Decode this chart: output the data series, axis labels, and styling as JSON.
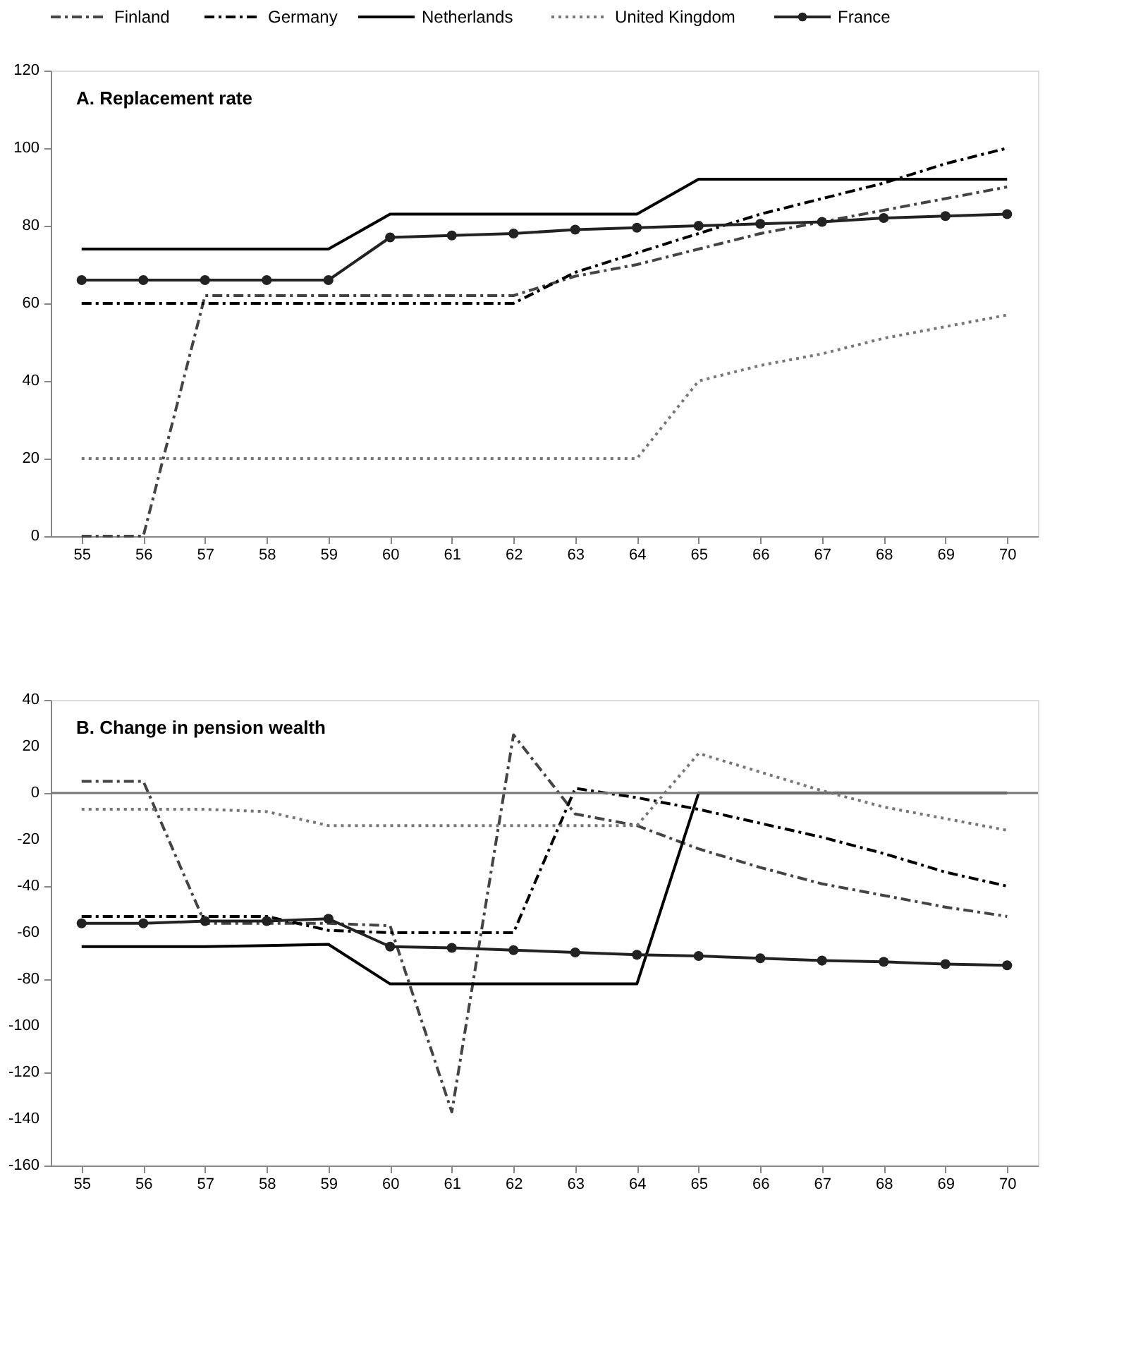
{
  "chart_data": [
    {
      "type": "line",
      "categories": [
        "55",
        "56",
        "57",
        "58",
        "59",
        "60",
        "61",
        "62",
        "63",
        "64",
        "65",
        "66",
        "67",
        "68",
        "69",
        "70"
      ],
      "ylim": [
        0,
        120
      ],
      "yticks": [
        0,
        20,
        40,
        60,
        80,
        100,
        120
      ],
      "grid": false,
      "legend": "top",
      "annotations": [
        "A. Replacement rate"
      ],
      "series": [
        {
          "name": "Finland",
          "color": "#444444",
          "line_style": "dashed",
          "marker": "none",
          "values": [
            0,
            0,
            62,
            62,
            62,
            62,
            62,
            62,
            67,
            70,
            74,
            78,
            81,
            84,
            87,
            90
          ]
        },
        {
          "name": "Germany",
          "color": "#000000",
          "line_style": "dashed",
          "marker": "none",
          "values": [
            60,
            60,
            60,
            60,
            60,
            60,
            60,
            60,
            68,
            73,
            78,
            83,
            87,
            91,
            96,
            100
          ]
        },
        {
          "name": "Netherlands",
          "color": "#000000",
          "line_style": "solid",
          "marker": "none",
          "values": [
            74,
            74,
            74,
            74,
            74,
            83,
            83,
            83,
            83,
            83,
            92,
            92,
            92,
            92,
            92,
            92
          ]
        },
        {
          "name": "United Kingdom",
          "color": "#777777",
          "line_style": "dotted",
          "marker": "none",
          "values": [
            20,
            20,
            20,
            20,
            20,
            20,
            20,
            20,
            20,
            20,
            40,
            44,
            47,
            51,
            54,
            57
          ]
        },
        {
          "name": "France",
          "color": "#222222",
          "line_style": "solid",
          "marker": "circle",
          "values": [
            66,
            66,
            66,
            66,
            66,
            77,
            77.5,
            78,
            79,
            79.5,
            80,
            80.5,
            81,
            82,
            82.5,
            83
          ]
        }
      ]
    },
    {
      "type": "line",
      "categories": [
        "55",
        "56",
        "57",
        "58",
        "59",
        "60",
        "61",
        "62",
        "63",
        "64",
        "65",
        "66",
        "67",
        "68",
        "69",
        "70"
      ],
      "ylim": [
        -160,
        40
      ],
      "yticks": [
        -160,
        -140,
        -120,
        -100,
        -80,
        -60,
        -40,
        -20,
        0,
        20,
        40
      ],
      "grid": false,
      "legend": false,
      "annotations": [
        "B. Change in pension wealth"
      ],
      "ref_lines": [
        {
          "axis": "y",
          "value": 0,
          "color": "#777777"
        }
      ],
      "series": [
        {
          "color": "#444444",
          "line_style": "dashed",
          "marker": "none",
          "values": [
            5,
            5,
            -56,
            -56,
            -56,
            -57,
            -137,
            25,
            -9,
            -14,
            -24,
            -32,
            -39,
            -44,
            -49,
            -53
          ]
        },
        {
          "color": "#000000",
          "line_style": "dashed",
          "marker": "none",
          "values": [
            -53,
            -53,
            -53,
            -53,
            -59,
            -60,
            -60,
            -60,
            2,
            -2,
            -7,
            -13,
            -19,
            -26,
            -34,
            -40
          ]
        },
        {
          "color": "#000000",
          "line_style": "solid",
          "marker": "none",
          "values": [
            -66,
            -66,
            -66,
            -65.5,
            -65,
            -82,
            -82,
            -82,
            -82,
            -82,
            0,
            0,
            0,
            0,
            0,
            0
          ]
        },
        {
          "color": "#777777",
          "line_style": "dotted",
          "marker": "none",
          "values": [
            -7,
            -7,
            -7,
            -8,
            -14,
            -14,
            -14,
            -14,
            -14,
            -14,
            17,
            9,
            1,
            -6,
            -11,
            -16
          ]
        },
        {
          "color": "#222222",
          "line_style": "solid",
          "marker": "circle",
          "values": [
            -56,
            -56,
            -55,
            -55,
            -54,
            -66,
            -66.5,
            -67.5,
            -68.5,
            -69.5,
            -70,
            -71,
            -72,
            -72.5,
            -73.5,
            -74
          ]
        }
      ]
    }
  ]
}
